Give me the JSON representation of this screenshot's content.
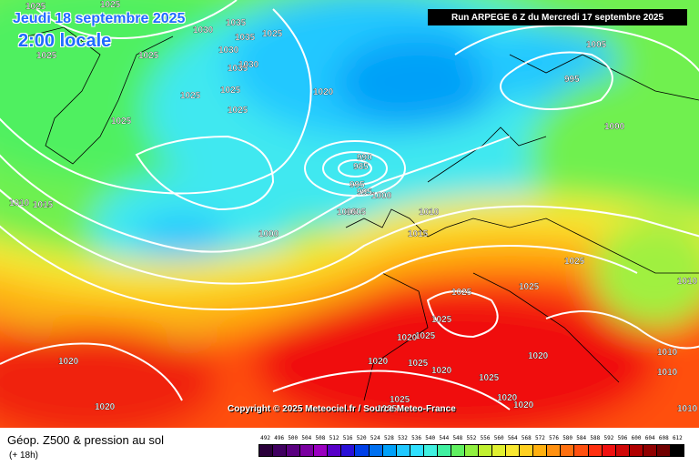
{
  "map": {
    "valid_date": "Jeudi 18 septembre 2025",
    "local_time": "2:00 locale",
    "run_info": "Run ARPEGE 6 Z du Mercredi 17 septembre 2025",
    "copyright": "Copyright © 2025 Meteociel.fr / Source Meteo-France",
    "isobar_labels": [
      "1025",
      "1025",
      "1035",
      "1030",
      "1035",
      "1025",
      "1025",
      "1025",
      "1030",
      "1035",
      "1030",
      "1025",
      "1025",
      "1025",
      "1020",
      "1025",
      "1005",
      "995",
      "990",
      "985",
      "995",
      "1000",
      "1005",
      "1010",
      "1000",
      "1015",
      "1010",
      "1015",
      "1025",
      "1025",
      "1025",
      "1025",
      "1025",
      "1020",
      "1025",
      "1020",
      "1020",
      "1025",
      "1020",
      "1020",
      "1025",
      "1020",
      "1020",
      "1020",
      "1025",
      "1000",
      "1010",
      "1010",
      "1010",
      "1010",
      "1005",
      "995"
    ]
  },
  "footer": {
    "product_title": "Géop. Z500 & pression au sol",
    "lead_time": "(+ 18h)",
    "scale_values": [
      "492",
      "496",
      "500",
      "504",
      "508",
      "512",
      "516",
      "520",
      "524",
      "528",
      "532",
      "536",
      "540",
      "544",
      "548",
      "552",
      "556",
      "560",
      "564",
      "568",
      "572",
      "576",
      "580",
      "584",
      "588",
      "592",
      "596",
      "600",
      "604",
      "608",
      "612"
    ],
    "scale_colors": [
      "#2a003a",
      "#400060",
      "#5a0080",
      "#7a00a0",
      "#9a00c0",
      "#5800c8",
      "#2a10d8",
      "#0040e8",
      "#0070f0",
      "#00a0f8",
      "#20c8ff",
      "#30e0ff",
      "#40f0e0",
      "#40f0a0",
      "#60f060",
      "#90f040",
      "#c0f030",
      "#e0f030",
      "#f8e830",
      "#ffd020",
      "#ffb010",
      "#ff9010",
      "#ff7010",
      "#ff5010",
      "#ff3010",
      "#f01010",
      "#d00808",
      "#b00000",
      "#900000",
      "#700000",
      "#000000"
    ]
  }
}
